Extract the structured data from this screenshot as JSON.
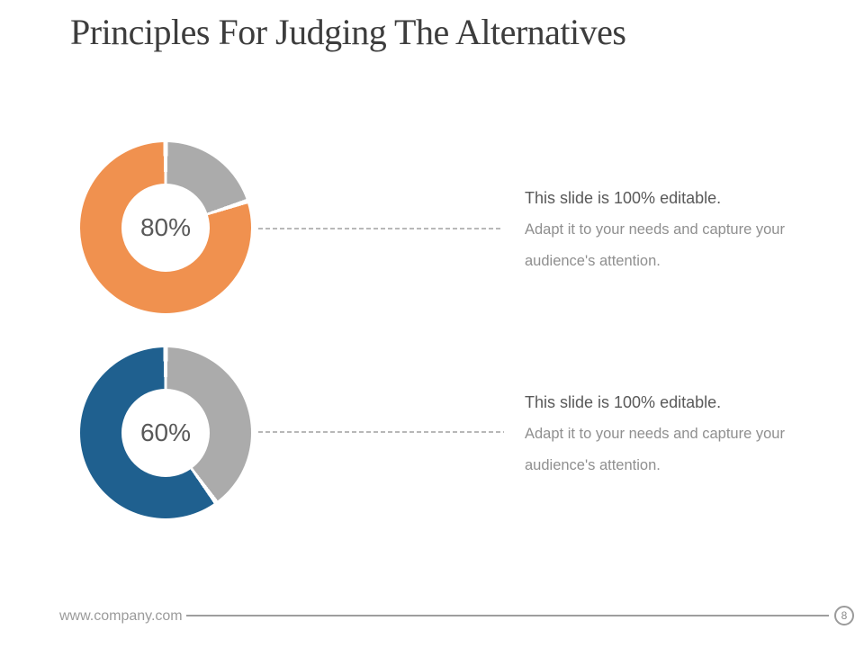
{
  "slide": {
    "title": "Principles For Judging The Alternatives",
    "footer": {
      "website": "www.company.com",
      "page_number": "8"
    }
  },
  "annotations": [
    {
      "heading": "This slide is 100% editable.",
      "body": "Adapt it to your needs and capture your audience's attention."
    },
    {
      "heading": "This slide is 100% editable.",
      "body": "Adapt it to your needs and capture your audience's attention."
    }
  ],
  "chart_data": [
    {
      "type": "pie",
      "subtype": "donut",
      "center_label": "80%",
      "values": [
        80,
        20
      ],
      "segment_names": [
        "value",
        "remainder"
      ],
      "colors": [
        "#F0914F",
        "#ABABAB"
      ],
      "remainder_start": "top",
      "direction": "clockwise",
      "separator_color": "#FFFFFF"
    },
    {
      "type": "pie",
      "subtype": "donut",
      "center_label": "60%",
      "values": [
        60,
        40
      ],
      "segment_names": [
        "value",
        "remainder"
      ],
      "colors": [
        "#1F608F",
        "#ABABAB"
      ],
      "remainder_start": "top",
      "direction": "clockwise",
      "separator_color": "#FFFFFF"
    }
  ],
  "colors": {
    "orange": "#F0914F",
    "blue": "#1F608F",
    "gray_segment": "#ABABAB",
    "dash_line": "#B8B8B8",
    "title_text": "#3D3D3D",
    "heading_text": "#595959",
    "body_text": "#8F8F8F",
    "footer_text": "#9B9B9B"
  }
}
